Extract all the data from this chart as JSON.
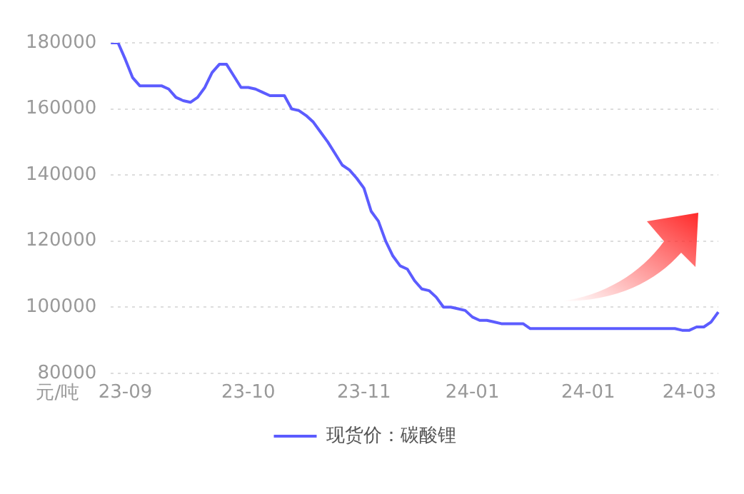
{
  "chart_data": {
    "type": "line",
    "ylabel": "元/吨",
    "categories": [
      null,
      null,
      "23-09",
      null,
      null,
      null,
      null,
      null,
      null,
      null,
      null,
      null,
      null,
      null,
      null,
      null,
      null,
      null,
      null,
      "23-10",
      null,
      null,
      null,
      null,
      null,
      null,
      null,
      null,
      null,
      null,
      null,
      null,
      null,
      null,
      null,
      "23-11",
      null,
      null,
      null,
      null,
      null,
      null,
      null,
      null,
      null,
      null,
      null,
      null,
      null,
      null,
      "24-01",
      null,
      null,
      null,
      null,
      null,
      null,
      null,
      null,
      null,
      null,
      null,
      null,
      null,
      null,
      null,
      "24-01",
      null,
      null,
      null,
      null,
      null,
      null,
      null,
      null,
      null,
      null,
      null,
      null,
      null,
      "24-03",
      null,
      null,
      null,
      null
    ],
    "series": [
      {
        "name": "现货价：碳酸锂",
        "color": "#5c5cff",
        "values": [
          180000,
          180000,
          175000,
          169500,
          167000,
          167000,
          167000,
          167000,
          166000,
          163500,
          162500,
          162000,
          163500,
          166500,
          171000,
          173500,
          173500,
          170000,
          166500,
          166500,
          166000,
          165000,
          164000,
          164000,
          164000,
          160000,
          159500,
          158000,
          156000,
          153000,
          150000,
          146500,
          143000,
          141500,
          139000,
          136000,
          129000,
          126000,
          120000,
          115500,
          112500,
          111500,
          108000,
          105500,
          105000,
          103000,
          100000,
          100000,
          99500,
          99000,
          97000,
          96000,
          96000,
          95500,
          95000,
          95000,
          95000,
          95000,
          93500,
          93500,
          93500,
          93500,
          93500,
          93500,
          93500,
          93500,
          93500,
          93500,
          93500,
          93500,
          93500,
          93500,
          93500,
          93500,
          93500,
          93500,
          93500,
          93500,
          93500,
          93000,
          93000,
          94000,
          94000,
          95500,
          98500
        ]
      }
    ],
    "ylim": [
      80000,
      180000
    ],
    "yticks": [
      80000,
      100000,
      120000,
      140000,
      160000,
      180000
    ],
    "grid": "y",
    "legend": "bottom",
    "marker": "none",
    "line_style": "solid"
  }
}
